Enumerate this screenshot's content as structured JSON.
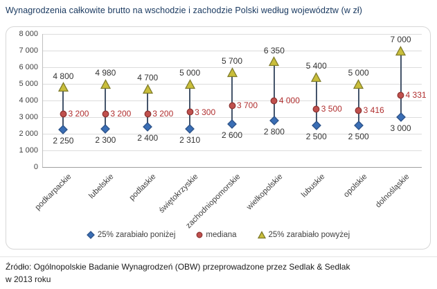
{
  "title": "Wynagrodzenia całkowite brutto na wschodzie i zachodzie Polski według województw (w zł)",
  "source": {
    "line1": "Źródło: Ogólnopolskie Badanie Wynagrodzeń (OBW) przeprowadzone przez Sedlak & Sedlak",
    "line2": "w 2013 roku"
  },
  "chart_data": {
    "type": "scatter",
    "subtype": "high-low-median",
    "title": "Wynagrodzenia całkowite brutto na wschodzie i zachodzie Polski według województw (w zł)",
    "categories": [
      "podkarpackie",
      "lubelskie",
      "podlaskie",
      "świętokrzyskie",
      "zachodniopomorskie",
      "wielkopolskie",
      "lubuskie",
      "opolskie",
      "dolnośląskie"
    ],
    "series": [
      {
        "name": "25% zarabiało poniżej",
        "marker": "diamond",
        "fill": "#3A6EB5",
        "stroke": "#2C5288",
        "values": [
          2250,
          2300,
          2400,
          2310,
          2600,
          2800,
          2500,
          2500,
          3000
        ]
      },
      {
        "name": "mediana",
        "marker": "circle",
        "fill": "#C0504D",
        "stroke": "#8E3432",
        "values": [
          3200,
          3200,
          3200,
          3300,
          3700,
          4000,
          3500,
          3416,
          4331
        ]
      },
      {
        "name": "25% zarabiało powyżej",
        "marker": "triangle",
        "fill": "#C9BE3B",
        "stroke": "#7E7A28",
        "values": [
          4800,
          4980,
          4700,
          5000,
          5700,
          6350,
          5400,
          5000,
          7000
        ]
      }
    ],
    "ylim": [
      0,
      8000
    ],
    "ytick_step": 1000,
    "ytick_labels": [
      "0",
      "1 000",
      "2 000",
      "3 000",
      "4 000",
      "5 000",
      "6 000",
      "7 000",
      "8 000"
    ],
    "grid": true,
    "legend_position": "bottom",
    "connector_color": "#44546A",
    "value_label_color": "#333333",
    "median_label_color": "#B02E2E"
  }
}
